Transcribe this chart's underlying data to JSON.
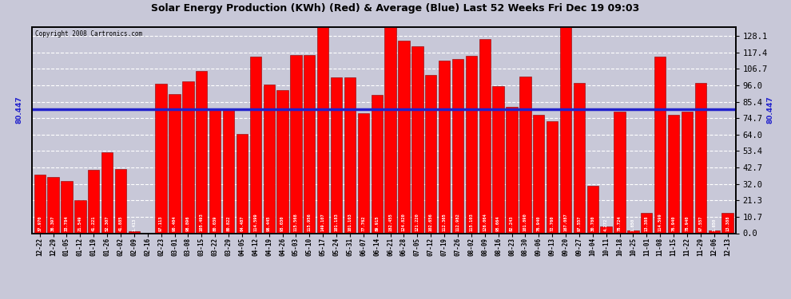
{
  "title": "Solar Energy Production (KWh) (Red) & Average (Blue) Last 52 Weeks Fri Dec 19 09:03",
  "copyright": "Copyright 2008 Cartronics.com",
  "average_line": 80.447,
  "bar_color": "#FF0000",
  "average_color": "#2222CC",
  "bg_color": "#C8C8D8",
  "bar_edge_color": "#880000",
  "categories": [
    "12-22",
    "12-29",
    "01-05",
    "01-12",
    "01-19",
    "01-26",
    "02-02",
    "02-09",
    "02-16",
    "02-23",
    "03-01",
    "03-08",
    "03-15",
    "03-22",
    "03-29",
    "04-05",
    "04-12",
    "04-19",
    "04-26",
    "05-03",
    "05-10",
    "05-17",
    "05-24",
    "05-31",
    "06-07",
    "06-14",
    "06-21",
    "06-28",
    "07-05",
    "07-12",
    "07-19",
    "07-26",
    "08-02",
    "08-09",
    "08-16",
    "08-23",
    "08-30",
    "09-06",
    "09-13",
    "09-20",
    "09-27",
    "10-04",
    "10-11",
    "10-18",
    "10-25",
    "11-01",
    "11-08",
    "11-15",
    "11-22",
    "11-29",
    "12-06",
    "12-13"
  ],
  "values": [
    37.97,
    36.397,
    33.784,
    21.549,
    41.221,
    52.307,
    41.885,
    1.413,
    0.0,
    97.113,
    90.404,
    98.896,
    105.493,
    80.039,
    80.822,
    64.487,
    114.599,
    96.445,
    93.03,
    115.568,
    115.956,
    149.107,
    101.183,
    101.103,
    77.762,
    89.915,
    182.455,
    124.82,
    121.22,
    102.656,
    112.365,
    112.982,
    115.103,
    126.064,
    95.664,
    82.243,
    101.89,
    76.94,
    72.76,
    167.087,
    97.557,
    30.78,
    4.272,
    78.724,
    1.65,
    13.388,
    114.599,
    76.94,
    78.94,
    97.557,
    1.65,
    13.388
  ],
  "right_yticks": [
    0.0,
    10.7,
    21.3,
    32.0,
    42.7,
    53.4,
    64.0,
    74.7,
    85.4,
    96.0,
    106.7,
    117.4,
    128.1
  ],
  "ylim_max": 134.0,
  "grid_color": "#FFFFFF",
  "avg_label": "80.447"
}
